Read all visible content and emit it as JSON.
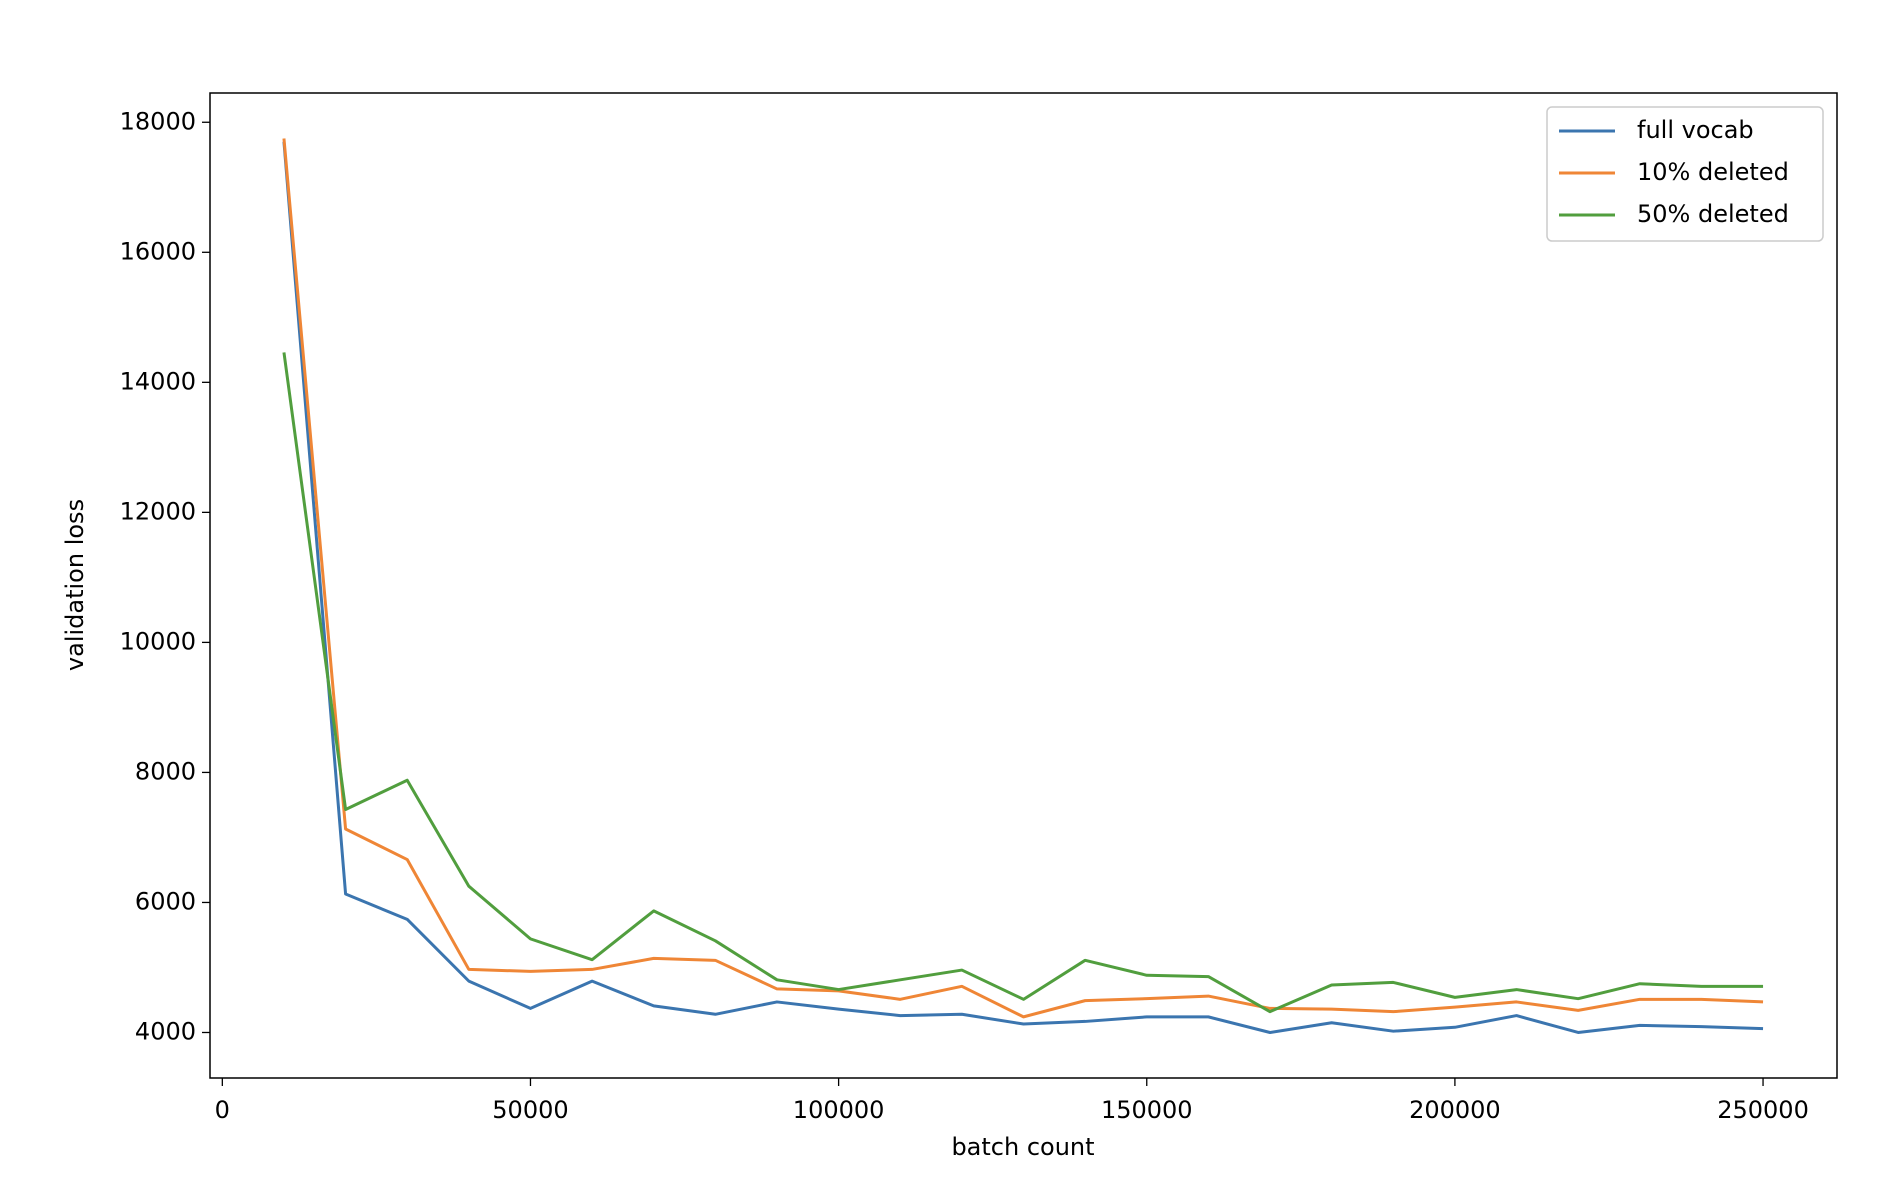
{
  "chart_data": {
    "type": "line",
    "x_label": "batch count",
    "y_label": "validation loss",
    "x": [
      10000,
      20000,
      30000,
      40000,
      50000,
      60000,
      70000,
      80000,
      90000,
      100000,
      110000,
      120000,
      130000,
      140000,
      150000,
      160000,
      170000,
      180000,
      190000,
      200000,
      210000,
      220000,
      230000,
      240000,
      250000
    ],
    "series": [
      {
        "name": "full vocab",
        "color": "#3b75af",
        "values": [
          17700,
          6130,
          5740,
          4790,
          4370,
          4790,
          4410,
          4280,
          4470,
          4360,
          4260,
          4280,
          4130,
          4170,
          4240,
          4240,
          4000,
          4150,
          4020,
          4080,
          4260,
          4000,
          4110,
          4090,
          4060
        ]
      },
      {
        "name": "10% deleted",
        "color": "#ef8636",
        "values": [
          17750,
          7130,
          6660,
          4970,
          4940,
          4970,
          5140,
          5110,
          4670,
          4640,
          4510,
          4710,
          4240,
          4490,
          4520,
          4560,
          4370,
          4360,
          4320,
          4390,
          4470,
          4340,
          4510,
          4510,
          4470
        ]
      },
      {
        "name": "50% deleted",
        "color": "#519e3e",
        "values": [
          14460,
          7430,
          7880,
          6250,
          5440,
          5120,
          5870,
          5410,
          4810,
          4660,
          4810,
          4960,
          4510,
          5110,
          4880,
          4860,
          4320,
          4730,
          4770,
          4540,
          4660,
          4520,
          4750,
          4710,
          4710
        ]
      }
    ],
    "xlim": [
      -2000,
      262000
    ],
    "xticks": [
      0,
      50000,
      100000,
      150000,
      200000,
      250000
    ],
    "ylim": [
      3300,
      18450
    ],
    "yticks": [
      4000,
      6000,
      8000,
      10000,
      12000,
      14000,
      16000,
      18000
    ],
    "legend": "upper right"
  }
}
